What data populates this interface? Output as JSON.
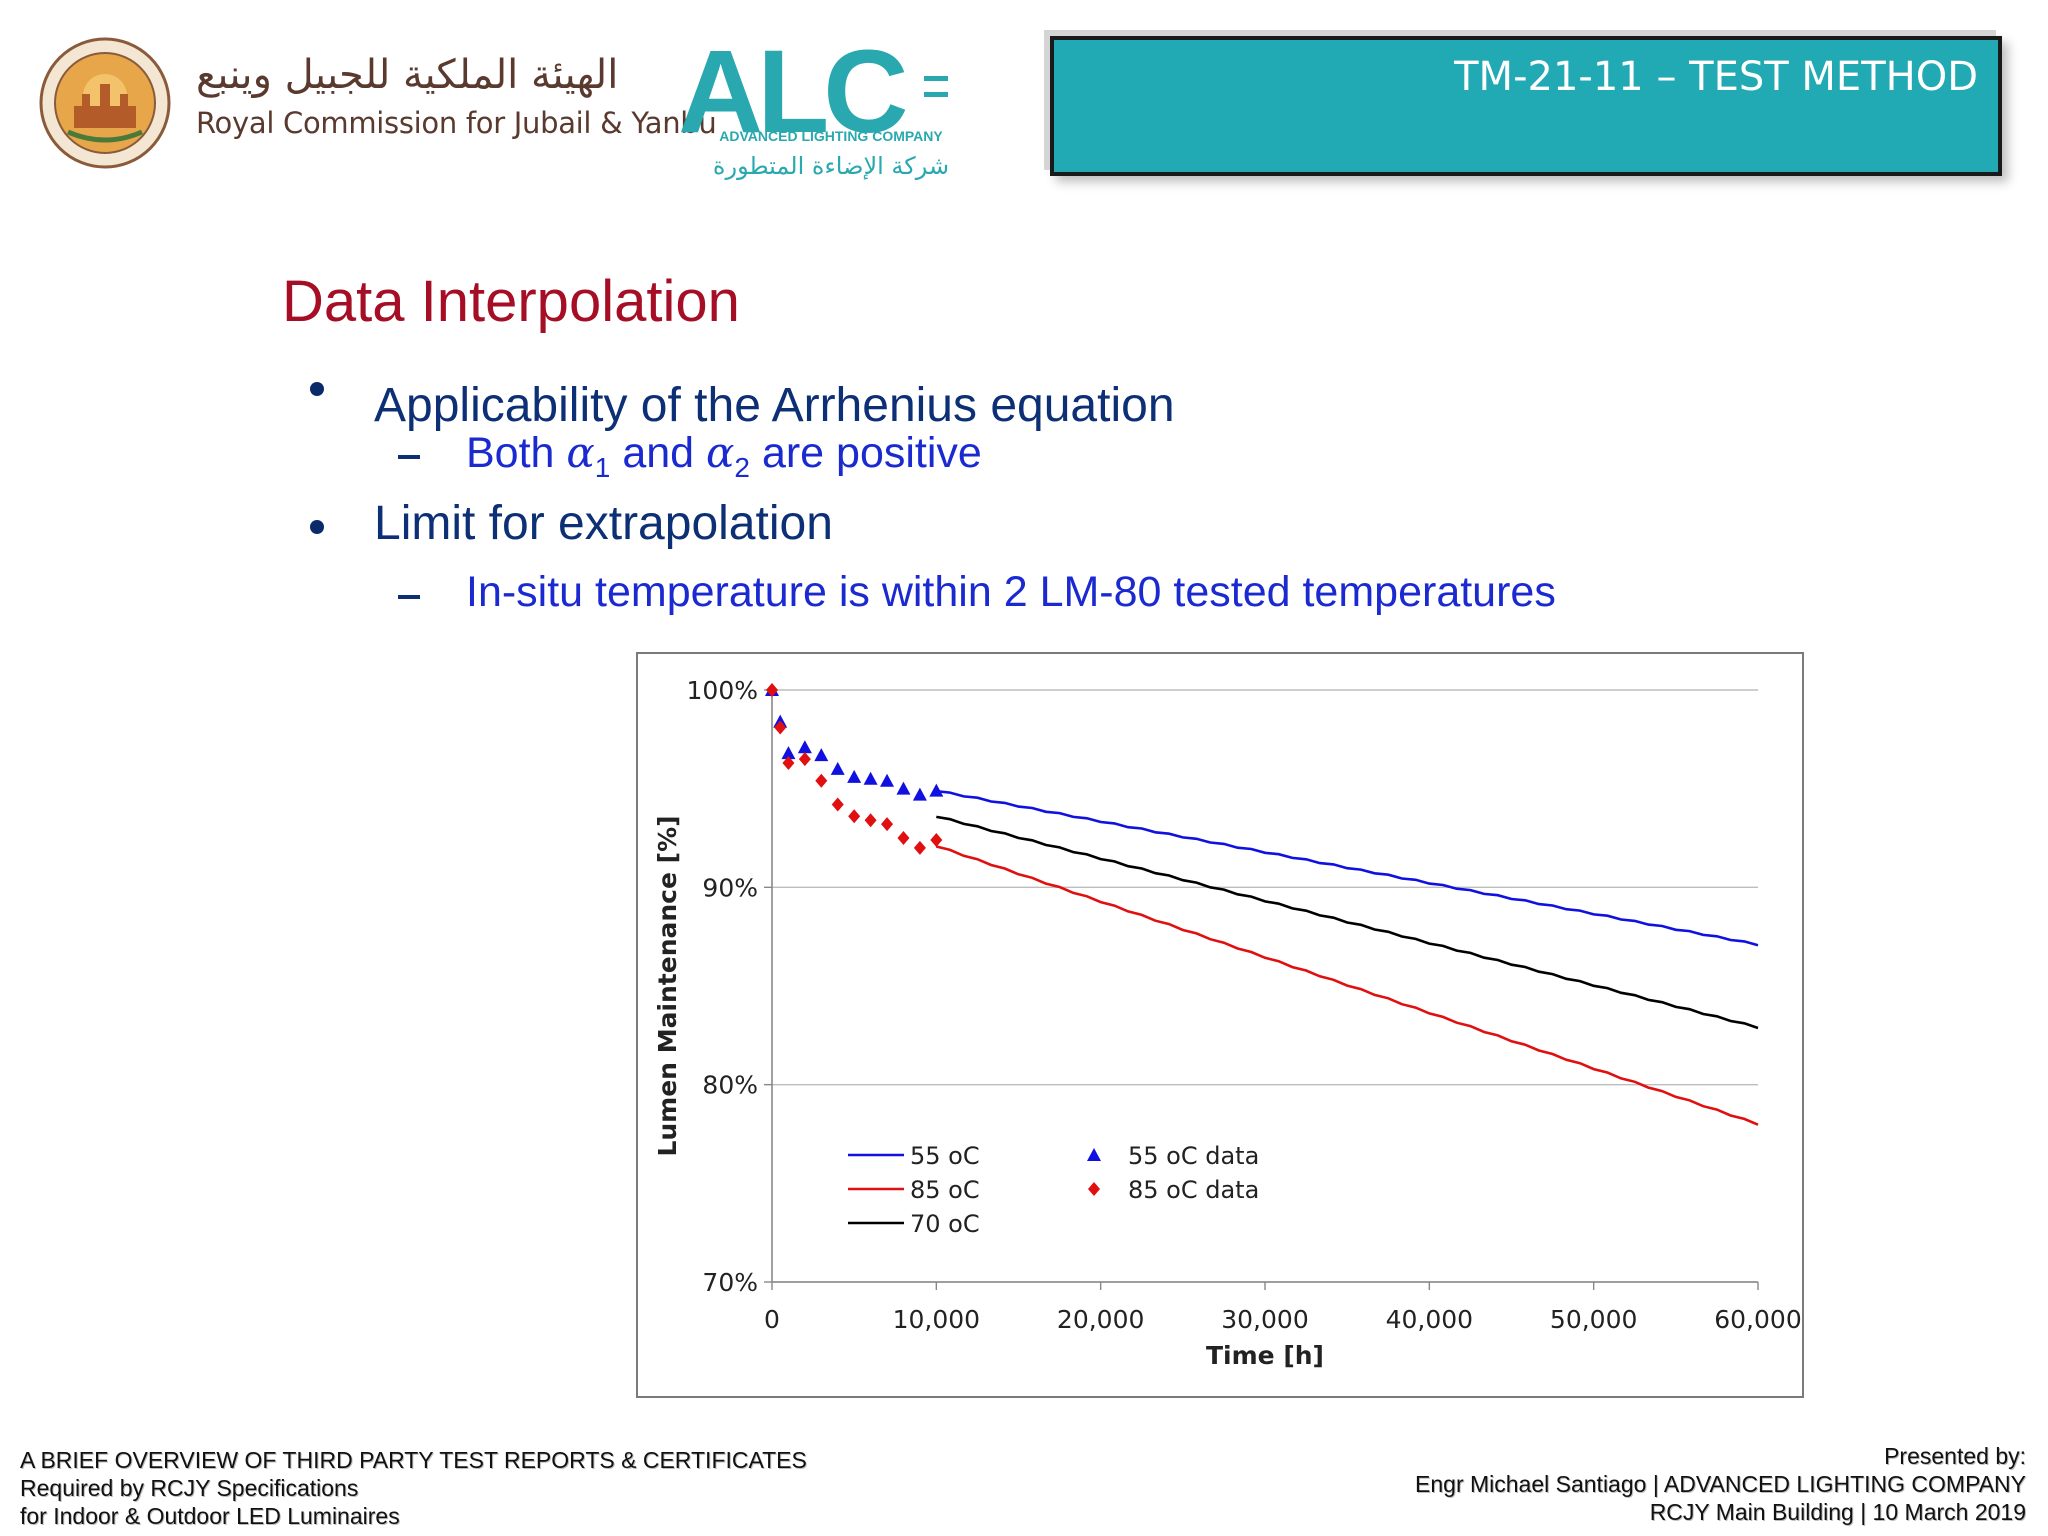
{
  "header": {
    "org_arabic": "الهيئة الملكية للجبيل وينبع",
    "org_english": "Royal Commission for Jubail & Yanbu",
    "company_logo_text": "ALC",
    "company_name": "ADVANCED LIGHTING COMPANY",
    "company_arabic": "شركة الإضاءة المتطورة",
    "section_title": "TM-21-11 – TEST METHOD",
    "brand_color": "#21aab3"
  },
  "slide": {
    "title": "Data Interpolation",
    "bullets": [
      {
        "text": "Applicability of the Arrhenius equation",
        "sub": {
          "pre": "Both",
          "var1": "α",
          "sub1": "1",
          "mid": "and",
          "var2": "α",
          "sub2": "2",
          "post": "are positive"
        }
      },
      {
        "text": "Limit for extrapolation",
        "sub": {
          "text": "In-situ temperature is within 2 LM-80 tested temperatures"
        }
      }
    ]
  },
  "chart_data": {
    "type": "line",
    "xlabel": "Time [h]",
    "ylabel": "Lumen Maintenance [%]",
    "xlim": [
      0,
      60000
    ],
    "ylim": [
      70,
      100
    ],
    "xticks": [
      "0",
      "10,000",
      "20,000",
      "30,000",
      "40,000",
      "50,000",
      "60,000"
    ],
    "yticks": [
      "70%",
      "80%",
      "90%",
      "100%"
    ],
    "grid": "horizontal",
    "legend_position": "bottom-left",
    "series": [
      {
        "name": "55 oC",
        "kind": "line",
        "color": "#1010e0",
        "x": [
          10000,
          60000
        ],
        "y": [
          94.9,
          87.1
        ]
      },
      {
        "name": "85 oC",
        "kind": "line",
        "color": "#e01010",
        "x": [
          10000,
          60000
        ],
        "y": [
          92.1,
          78.0
        ]
      },
      {
        "name": "70 oC",
        "kind": "line",
        "color": "#000000",
        "x": [
          10000,
          60000
        ],
        "y": [
          93.6,
          82.9
        ]
      },
      {
        "name": "55 oC data",
        "kind": "scatter",
        "marker": "triangle",
        "color": "#1010e0",
        "x": [
          0,
          500,
          1000,
          2000,
          3000,
          4000,
          5000,
          6000,
          7000,
          8000,
          9000,
          10000
        ],
        "y": [
          100,
          98.4,
          96.8,
          97.1,
          96.7,
          96.0,
          95.6,
          95.5,
          95.4,
          95.0,
          94.7,
          94.9
        ]
      },
      {
        "name": "85 oC data",
        "kind": "scatter",
        "marker": "diamond",
        "color": "#e01010",
        "x": [
          0,
          500,
          1000,
          2000,
          3000,
          4000,
          5000,
          6000,
          7000,
          8000,
          9000,
          10000
        ],
        "y": [
          100,
          98.1,
          96.3,
          96.5,
          95.4,
          94.2,
          93.6,
          93.4,
          93.2,
          92.5,
          92.0,
          92.4
        ]
      }
    ]
  },
  "footer": {
    "left_line1": "A BRIEF OVERVIEW OF THIRD PARTY TEST REPORTS & CERTIFICATES",
    "left_line2": "Required by RCJY Specifications",
    "left_line3": "for Indoor & Outdoor LED Luminaires",
    "right_line1": "Presented by:",
    "right_line2": "Engr Michael Santiago | ADVANCED LIGHTING COMPANY",
    "right_line3": "RCJY Main Building | 10 March 2019"
  }
}
